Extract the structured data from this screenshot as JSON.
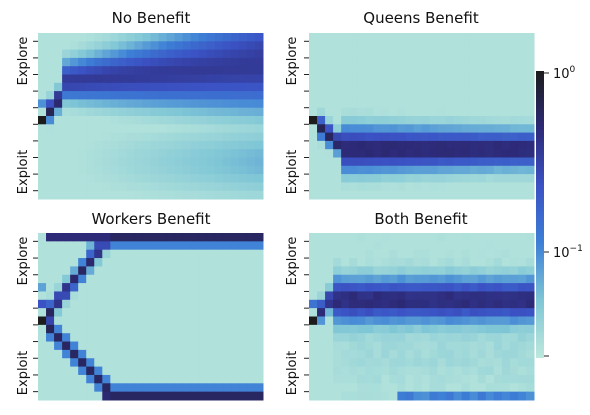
{
  "chart_data": {
    "type": "heatmap",
    "colorbar": {
      "scale": "log",
      "range": [
        0.03,
        1
      ],
      "ticks": [
        {
          "value": 1,
          "base": "10",
          "exp": "0"
        },
        {
          "value": 0.1,
          "base": "10",
          "exp": "−1"
        }
      ],
      "colors": [
        "#bde8dc",
        "#7fc6d6",
        "#3d7fd6",
        "#3b52c4",
        "#2d2a78",
        "#1c1c1c"
      ]
    },
    "panels": [
      {
        "title": "No Benefit",
        "ylabel_top": "Explore",
        "ylabel_bottom": "Exploit",
        "pattern": "no_benefit"
      },
      {
        "title": "Queens Benefit",
        "ylabel_top": "Explore",
        "ylabel_bottom": "Exploit",
        "pattern": "queens_benefit"
      },
      {
        "title": "Workers Benefit",
        "ylabel_top": "Explore",
        "ylabel_bottom": "Exploit",
        "pattern": "workers_benefit"
      },
      {
        "title": "Both Benefit",
        "ylabel_top": "Explore",
        "ylabel_bottom": "Exploit",
        "pattern": "both_benefit"
      }
    ],
    "grid": {
      "rows": 20,
      "cols": 28,
      "start_row": 10
    }
  }
}
